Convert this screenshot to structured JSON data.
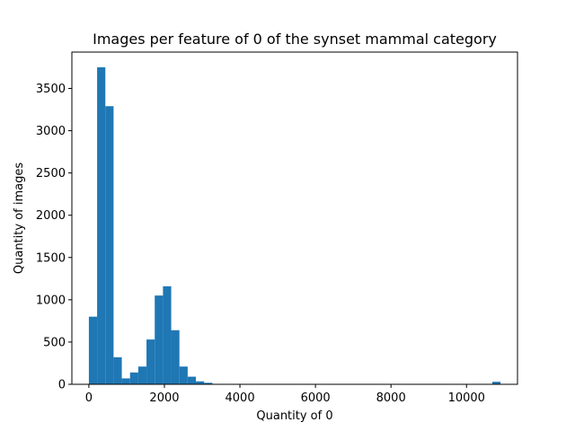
{
  "chart_data": {
    "type": "bar",
    "subtype": "histogram",
    "title": "Images per feature of 0 of the synset mammal category",
    "xlabel": "Quantity of 0",
    "ylabel": "Quantity of images",
    "xlim": [
      -450,
      11350
    ],
    "ylim": [
      0,
      3930
    ],
    "xticks": [
      0,
      2000,
      4000,
      6000,
      8000,
      10000
    ],
    "yticks": [
      0,
      500,
      1000,
      1500,
      2000,
      2500,
      3000,
      3500
    ],
    "bar_color": "#1f77b4",
    "bin_width": 218,
    "series": [
      {
        "bins": [
          {
            "x0": 0,
            "x1": 218,
            "count": 800
          },
          {
            "x0": 218,
            "x1": 436,
            "count": 3750
          },
          {
            "x0": 436,
            "x1": 654,
            "count": 3290
          },
          {
            "x0": 654,
            "x1": 872,
            "count": 320
          },
          {
            "x0": 872,
            "x1": 1090,
            "count": 70
          },
          {
            "x0": 1090,
            "x1": 1308,
            "count": 140
          },
          {
            "x0": 1308,
            "x1": 1526,
            "count": 210
          },
          {
            "x0": 1526,
            "x1": 1744,
            "count": 530
          },
          {
            "x0": 1744,
            "x1": 1962,
            "count": 1050
          },
          {
            "x0": 1962,
            "x1": 2180,
            "count": 1160
          },
          {
            "x0": 2180,
            "x1": 2398,
            "count": 640
          },
          {
            "x0": 2398,
            "x1": 2616,
            "count": 210
          },
          {
            "x0": 2616,
            "x1": 2834,
            "count": 90
          },
          {
            "x0": 2834,
            "x1": 3052,
            "count": 35
          },
          {
            "x0": 3052,
            "x1": 3270,
            "count": 18
          },
          {
            "x0": 10682,
            "x1": 10900,
            "count": 30
          }
        ]
      }
    ]
  }
}
